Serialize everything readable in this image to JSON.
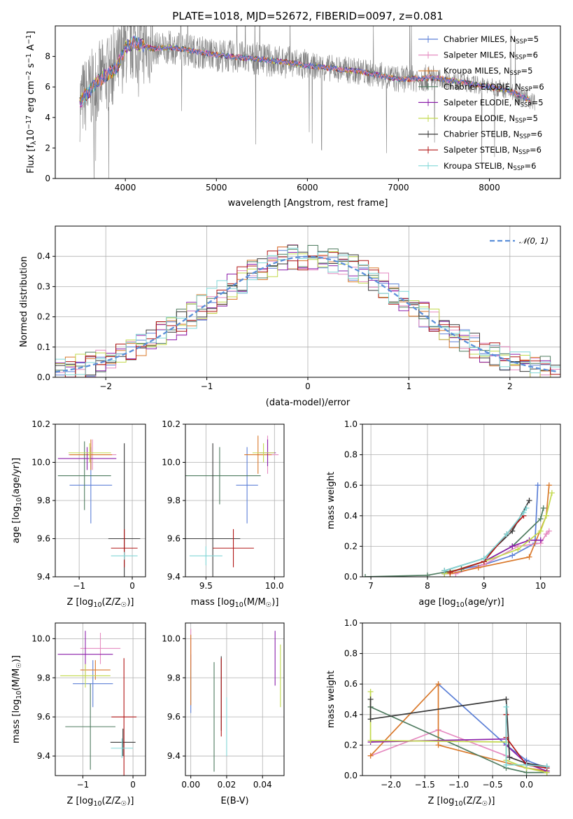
{
  "colors": [
    "#5b7fd6",
    "#e58ac0",
    "#d9782a",
    "#4e7b5f",
    "#8b1faa",
    "#c2d94c",
    "#3a3a3a",
    "#b11515",
    "#7fd6d6"
  ],
  "colors_note_names": [
    "cornflowerblue",
    "hotpink",
    "orange",
    "seagreen",
    "purple",
    "yellowgreen",
    "dark gray",
    "firebrick",
    "paleturquoise"
  ],
  "chart_data": [
    {
      "id": "spectrum",
      "type": "line",
      "title": "PLATE=1018, MJD=52672, FIBERID=0097, z=0.081",
      "xlabel": "wavelength [Angstrom, rest frame]",
      "ylabel_parts": [
        "Flux [f",
        "λ",
        "10",
        "−17",
        " erg cm",
        "−2",
        " s",
        "−1",
        " A",
        "−1",
        "]"
      ],
      "xlim": [
        3230,
        8780
      ],
      "ylim": [
        0,
        10
      ],
      "xticks": [
        4000,
        5000,
        6000,
        7000,
        8000
      ],
      "yticks": [
        0,
        2,
        4,
        6,
        8
      ],
      "grid": false,
      "legend_position": "top-right",
      "legend": [
        {
          "label": "Chabrier MILES, N",
          "sub": "SSP",
          "value": "=5"
        },
        {
          "label": "Salpeter MILES, N",
          "sub": "SSP",
          "value": "=6"
        },
        {
          "label": "Kroupa MILES, N",
          "sub": "SSP",
          "value": "=5"
        },
        {
          "label": "Chabrier ELODIE, N",
          "sub": "SSP",
          "value": "=6"
        },
        {
          "label": "Salpeter ELODIE, N",
          "sub": "SSP",
          "value": "=5"
        },
        {
          "label": "Kroupa ELODIE, N",
          "sub": "SSP",
          "value": "=5"
        },
        {
          "label": "Chabrier STELIB, N",
          "sub": "SSP",
          "value": "=6"
        },
        {
          "label": "Salpeter STELIB, N",
          "sub": "SSP",
          "value": "=6"
        },
        {
          "label": "Kroupa STELIB, N",
          "sub": "SSP",
          "value": "=6"
        }
      ],
      "continuum": [
        [
          3500,
          5.0
        ],
        [
          3700,
          6.4
        ],
        [
          3900,
          7.2
        ],
        [
          4000,
          8.6
        ],
        [
          4100,
          8.9
        ],
        [
          4300,
          8.5
        ],
        [
          4500,
          8.6
        ],
        [
          4800,
          8.3
        ],
        [
          5000,
          8.1
        ],
        [
          5300,
          7.9
        ],
        [
          5500,
          7.8
        ],
        [
          5800,
          7.6
        ],
        [
          6000,
          7.4
        ],
        [
          6300,
          7.2
        ],
        [
          6600,
          7.0
        ],
        [
          7000,
          6.5
        ],
        [
          7400,
          6.6
        ],
        [
          7800,
          6.2
        ],
        [
          8200,
          5.8
        ],
        [
          8500,
          5.0
        ]
      ]
    },
    {
      "id": "residuals",
      "type": "histogram",
      "xlabel": "(data-model)/error",
      "ylabel": "Normed distribution",
      "xlim": [
        -2.5,
        2.5
      ],
      "ylim": [
        0,
        0.5
      ],
      "xticks": [
        -2,
        -1,
        0,
        1,
        2
      ],
      "yticks": [
        0.0,
        0.1,
        0.2,
        0.3,
        0.4
      ],
      "grid": true,
      "legend_position": "top-right",
      "legend_label": "𝒩(0, 1)",
      "bin_width": 0.1
    },
    {
      "id": "age-vs-Z",
      "type": "scatter",
      "xlabel_parts": [
        "Z [log",
        "10",
        "(Z/Z",
        "☉",
        ")]"
      ],
      "ylabel_parts": [
        "age  [log",
        "10",
        "(age/yr)]"
      ],
      "xlim": [
        -1.45,
        0.25
      ],
      "ylim": [
        9.4,
        10.2
      ],
      "xticks": [
        -1,
        0
      ],
      "yticks": [
        9.4,
        9.6,
        9.8,
        10.0,
        10.2
      ],
      "grid": true,
      "points": [
        {
          "x": -0.78,
          "y": 9.88,
          "xerr": 0.4,
          "yerr": 0.2
        },
        {
          "x": -0.75,
          "y": 10.04,
          "xerr": 0.45,
          "yerr": 0.08
        },
        {
          "x": -0.78,
          "y": 10.04,
          "xerr": 0.4,
          "yerr": 0.08
        },
        {
          "x": -0.9,
          "y": 9.93,
          "xerr": 0.5,
          "yerr": 0.18
        },
        {
          "x": -0.85,
          "y": 10.02,
          "xerr": 0.55,
          "yerr": 0.06
        },
        {
          "x": -0.8,
          "y": 10.05,
          "xerr": 0.4,
          "yerr": 0.05
        },
        {
          "x": -0.15,
          "y": 9.6,
          "xerr": 0.3,
          "yerr": 0.5
        },
        {
          "x": -0.15,
          "y": 9.55,
          "xerr": 0.25,
          "yerr": 0.1
        },
        {
          "x": -0.15,
          "y": 9.51,
          "xerr": 0.25,
          "yerr": 0.02
        }
      ]
    },
    {
      "id": "age-vs-mass",
      "type": "scatter",
      "xlabel_parts": [
        "mass [log",
        "10",
        "(M/M",
        "☉",
        ")]"
      ],
      "xlim": [
        9.35,
        10.07
      ],
      "ylim": [
        9.4,
        10.2
      ],
      "xticks": [
        9.5,
        10.0
      ],
      "yticks": [
        9.4,
        9.6,
        9.8,
        10.0,
        10.2
      ],
      "grid": true,
      "points": [
        {
          "x": 9.8,
          "y": 9.88,
          "xerr": 0.08,
          "yerr": 0.2
        },
        {
          "x": 9.95,
          "y": 10.04,
          "xerr": 0.08,
          "yerr": 0.1
        },
        {
          "x": 9.88,
          "y": 10.04,
          "xerr": 0.1,
          "yerr": 0.1
        },
        {
          "x": 9.6,
          "y": 9.93,
          "xerr": 0.3,
          "yerr": 0.15
        },
        {
          "x": 9.95,
          "y": 10.05,
          "xerr": 0.06,
          "yerr": 0.07
        },
        {
          "x": 9.92,
          "y": 10.05,
          "xerr": 0.08,
          "yerr": 0.05
        },
        {
          "x": 9.55,
          "y": 9.6,
          "xerr": 0.2,
          "yerr": 0.5
        },
        {
          "x": 9.7,
          "y": 9.55,
          "xerr": 0.15,
          "yerr": 0.1
        },
        {
          "x": 9.5,
          "y": 9.51,
          "xerr": 0.12,
          "yerr": 0.05
        }
      ]
    },
    {
      "id": "mass-weight-vs-age",
      "type": "line",
      "xlabel_parts": [
        "age  [log",
        "10",
        "(age/yr)]"
      ],
      "ylabel": "mass weight",
      "xlim": [
        6.85,
        10.35
      ],
      "ylim": [
        0,
        1.0
      ],
      "xticks": [
        7,
        8,
        9,
        10
      ],
      "yticks": [
        0.0,
        0.2,
        0.4,
        0.6,
        0.8,
        1.0
      ],
      "grid": true,
      "series": [
        {
          "x": [
            8.3,
            8.6,
            9.0,
            9.5,
            9.9,
            9.95
          ],
          "y": [
            0.02,
            0.05,
            0.08,
            0.14,
            0.22,
            0.6
          ]
        },
        {
          "x": [
            8.5,
            9.0,
            9.6,
            10.0,
            10.1,
            10.15
          ],
          "y": [
            0.02,
            0.08,
            0.2,
            0.22,
            0.28,
            0.3
          ]
        },
        {
          "x": [
            8.4,
            8.9,
            9.8,
            10.1,
            10.15
          ],
          "y": [
            0.02,
            0.06,
            0.13,
            0.4,
            0.6
          ]
        },
        {
          "x": [
            6.9,
            8.0,
            8.6,
            9.0,
            9.5,
            10.0,
            10.05
          ],
          "y": [
            0.0,
            0.01,
            0.05,
            0.1,
            0.2,
            0.38,
            0.45
          ]
        },
        {
          "x": [
            8.3,
            9.0,
            9.5,
            9.8,
            10.0
          ],
          "y": [
            0.02,
            0.1,
            0.2,
            0.24,
            0.24
          ]
        },
        {
          "x": [
            8.3,
            9.0,
            9.6,
            10.0,
            10.1,
            10.2
          ],
          "y": [
            0.02,
            0.1,
            0.18,
            0.3,
            0.4,
            0.55
          ]
        },
        {
          "x": [
            8.3,
            9.0,
            9.5,
            9.8
          ],
          "y": [
            0.04,
            0.12,
            0.3,
            0.5
          ]
        },
        {
          "x": [
            8.4,
            9.0,
            9.4,
            9.7
          ],
          "y": [
            0.03,
            0.1,
            0.28,
            0.4
          ]
        },
        {
          "x": [
            8.3,
            9.0,
            9.4,
            9.7,
            9.75
          ],
          "y": [
            0.04,
            0.12,
            0.28,
            0.42,
            0.45
          ]
        }
      ]
    },
    {
      "id": "mass-vs-Z",
      "type": "scatter",
      "xlabel_parts": [
        "Z [log",
        "10",
        "(Z/Z",
        "☉",
        ")]"
      ],
      "ylabel_parts": [
        "mass [log",
        "10",
        "(M/M",
        "☉",
        ")]"
      ],
      "xlim": [
        -1.55,
        0.25
      ],
      "ylim": [
        9.3,
        10.08
      ],
      "xticks": [
        -1,
        0
      ],
      "yticks": [
        9.4,
        9.6,
        9.8,
        10.0
      ],
      "grid": true,
      "points": [
        {
          "x": -0.8,
          "y": 9.77,
          "xerr": 0.4,
          "yerr": 0.12
        },
        {
          "x": -0.65,
          "y": 9.95,
          "xerr": 0.4,
          "yerr": 0.08
        },
        {
          "x": -0.75,
          "y": 9.84,
          "xerr": 0.3,
          "yerr": 0.05
        },
        {
          "x": -0.85,
          "y": 9.55,
          "xerr": 0.5,
          "yerr": 0.22
        },
        {
          "x": -0.95,
          "y": 9.92,
          "xerr": 0.55,
          "yerr": 0.12
        },
        {
          "x": -0.95,
          "y": 9.81,
          "xerr": 0.5,
          "yerr": 0.06
        },
        {
          "x": -0.2,
          "y": 9.47,
          "xerr": 0.25,
          "yerr": 0.07
        },
        {
          "x": -0.18,
          "y": 9.6,
          "xerr": 0.25,
          "yerr": 0.3
        },
        {
          "x": -0.22,
          "y": 9.44,
          "xerr": 0.22,
          "yerr": 0.05
        }
      ]
    },
    {
      "id": "mass-vs-EBV",
      "type": "scatter",
      "xlabel": "E(B-V)",
      "xlim": [
        -0.003,
        0.052
      ],
      "ylim": [
        9.3,
        10.08
      ],
      "xticks": [
        0.0,
        0.02,
        0.04
      ],
      "yticks": [
        9.4,
        9.6,
        9.8,
        10.0
      ],
      "grid": true,
      "points": [
        {
          "x": 0.0,
          "y": 9.77,
          "xerr": 0.0,
          "yerr": 0.15
        },
        {
          "x": 0.0,
          "y": 9.95,
          "xerr": 0.0,
          "yerr": 0.1
        },
        {
          "x": 0.0,
          "y": 9.84,
          "xerr": 0.0,
          "yerr": 0.18
        },
        {
          "x": 0.013,
          "y": 9.6,
          "xerr": 0.0,
          "yerr": 0.28
        },
        {
          "x": 0.047,
          "y": 9.9,
          "xerr": 0.0,
          "yerr": 0.14
        },
        {
          "x": 0.05,
          "y": 9.81,
          "xerr": 0.0,
          "yerr": 0.16
        },
        {
          "x": 0.017,
          "y": 9.72,
          "xerr": 0.0,
          "yerr": 0.19
        },
        {
          "x": 0.017,
          "y": 9.7,
          "xerr": 0.0,
          "yerr": 0.2
        },
        {
          "x": 0.02,
          "y": 9.55,
          "xerr": 0.0,
          "yerr": 0.15
        }
      ]
    },
    {
      "id": "mass-weight-vs-Z",
      "type": "line",
      "xlabel_parts": [
        "Z [log",
        "10",
        "(Z/Z",
        "☉",
        ")]"
      ],
      "ylabel": "mass weight",
      "xlim": [
        -2.42,
        0.5
      ],
      "ylim": [
        0,
        1.0
      ],
      "xticks": [
        -2.0,
        -1.5,
        -1.0,
        -0.5,
        0.0
      ],
      "yticks": [
        0.0,
        0.2,
        0.4,
        0.6,
        0.8,
        1.0
      ],
      "grid": true,
      "series": [
        {
          "x": [
            -1.3,
            -0.3,
            0.0,
            0.3
          ],
          "y": [
            0.6,
            0.2,
            0.1,
            0.05
          ]
        },
        {
          "x": [
            -2.3,
            -1.3,
            -0.3,
            0.0,
            0.3
          ],
          "y": [
            0.13,
            0.3,
            0.13,
            0.08,
            0.05
          ]
        },
        {
          "x": [
            -2.3,
            -1.3,
            -1.3,
            0.0,
            0.3
          ],
          "y": [
            0.13,
            0.6,
            0.2,
            0.05,
            0.03
          ]
        },
        {
          "x": [
            -2.3,
            -0.3,
            0.0,
            0.3
          ],
          "y": [
            0.45,
            0.05,
            0.02,
            0.02
          ]
        },
        {
          "x": [
            -2.3,
            -0.3,
            -0.3,
            0.0,
            0.3
          ],
          "y": [
            0.22,
            0.24,
            0.2,
            0.08,
            0.03
          ]
        },
        {
          "x": [
            -2.3,
            -2.3,
            -0.3,
            -0.3,
            0.0,
            0.3
          ],
          "y": [
            0.55,
            0.23,
            0.22,
            0.1,
            0.05,
            0.02
          ]
        },
        {
          "x": [
            -2.3,
            -2.3,
            -0.3,
            -0.25,
            0.0,
            0.3
          ],
          "y": [
            0.5,
            0.37,
            0.5,
            0.12,
            0.08,
            0.06
          ]
        },
        {
          "x": [
            -0.3,
            -0.3,
            0.0,
            0.3
          ],
          "y": [
            0.4,
            0.25,
            0.07,
            0.05
          ]
        },
        {
          "x": [
            -0.3,
            -0.3,
            0.0,
            0.3
          ],
          "y": [
            0.45,
            0.07,
            0.07,
            0.06
          ]
        }
      ]
    }
  ]
}
